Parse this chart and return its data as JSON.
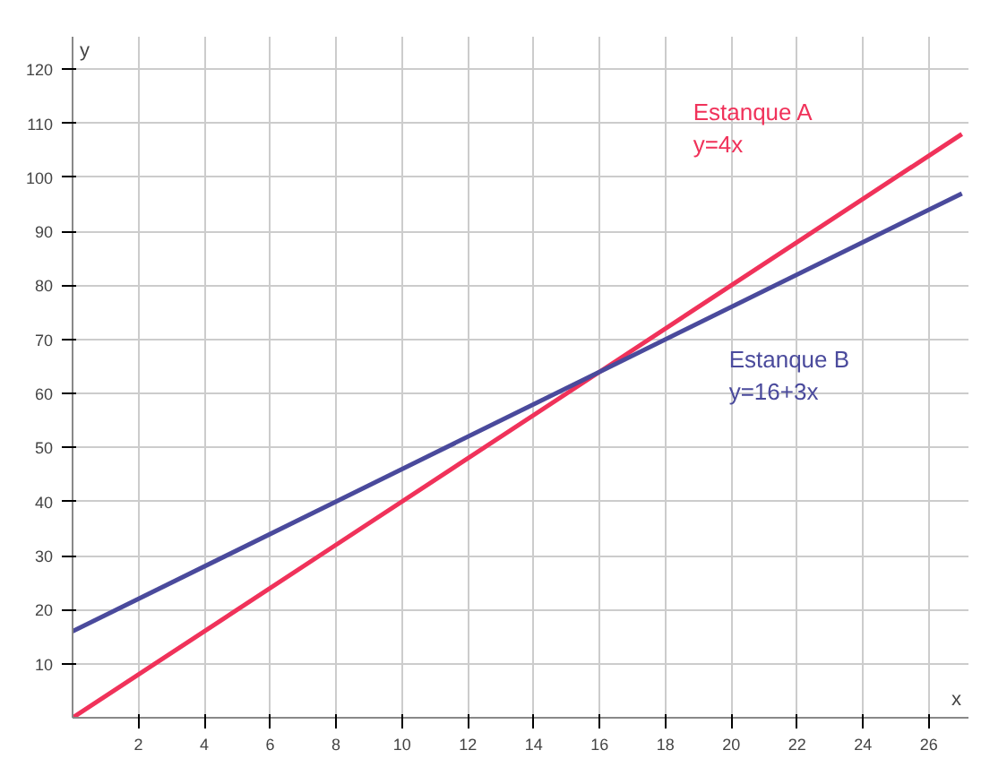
{
  "chart_data": {
    "type": "line",
    "xlabel": "x",
    "ylabel": "y",
    "xlim": [
      0,
      27.2
    ],
    "ylim": [
      0,
      126
    ],
    "xticks": [
      2,
      4,
      6,
      8,
      10,
      12,
      14,
      16,
      18,
      20,
      22,
      24,
      26
    ],
    "yticks": [
      10,
      20,
      30,
      40,
      50,
      60,
      70,
      80,
      90,
      100,
      110,
      120
    ],
    "grid": true,
    "legend": false,
    "marker": "none",
    "line_style": "solid",
    "series": [
      {
        "name": "Estanque A",
        "color": "#f0325a",
        "x": [
          0,
          8,
          16,
          27
        ],
        "values": [
          0,
          32,
          64,
          108
        ]
      },
      {
        "name": "Estanque B",
        "color": "#4a4a9c",
        "x": [
          0,
          8,
          16,
          27
        ],
        "values": [
          16,
          40,
          64,
          97
        ]
      }
    ],
    "annotations": [
      "y=4x",
      "y=16+3x"
    ]
  }
}
